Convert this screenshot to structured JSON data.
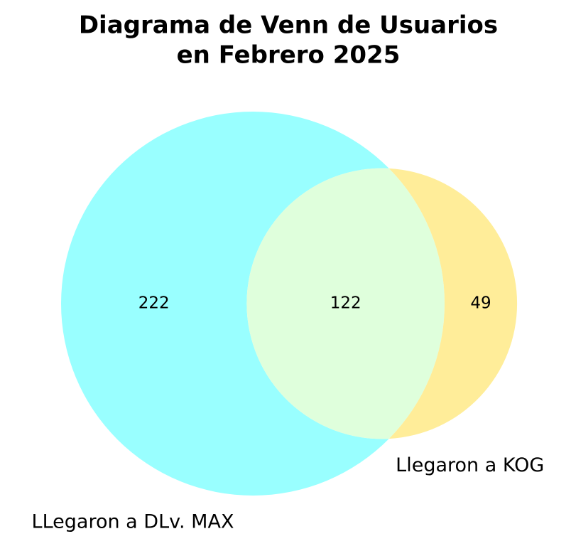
{
  "chart_data": {
    "type": "venn",
    "title": [
      "Diagrama de Venn de Usuarios",
      "en Febrero 2025"
    ],
    "sets": [
      {
        "name": "LLegaron a DLv. MAX",
        "color": "#99ffff"
      },
      {
        "name": "Llegaron a KOG",
        "color": "#ffed99"
      }
    ],
    "overlap_color": "#dfffdc",
    "regions": [
      "10",
      "11",
      "01"
    ],
    "values": [
      222,
      122,
      49
    ]
  }
}
